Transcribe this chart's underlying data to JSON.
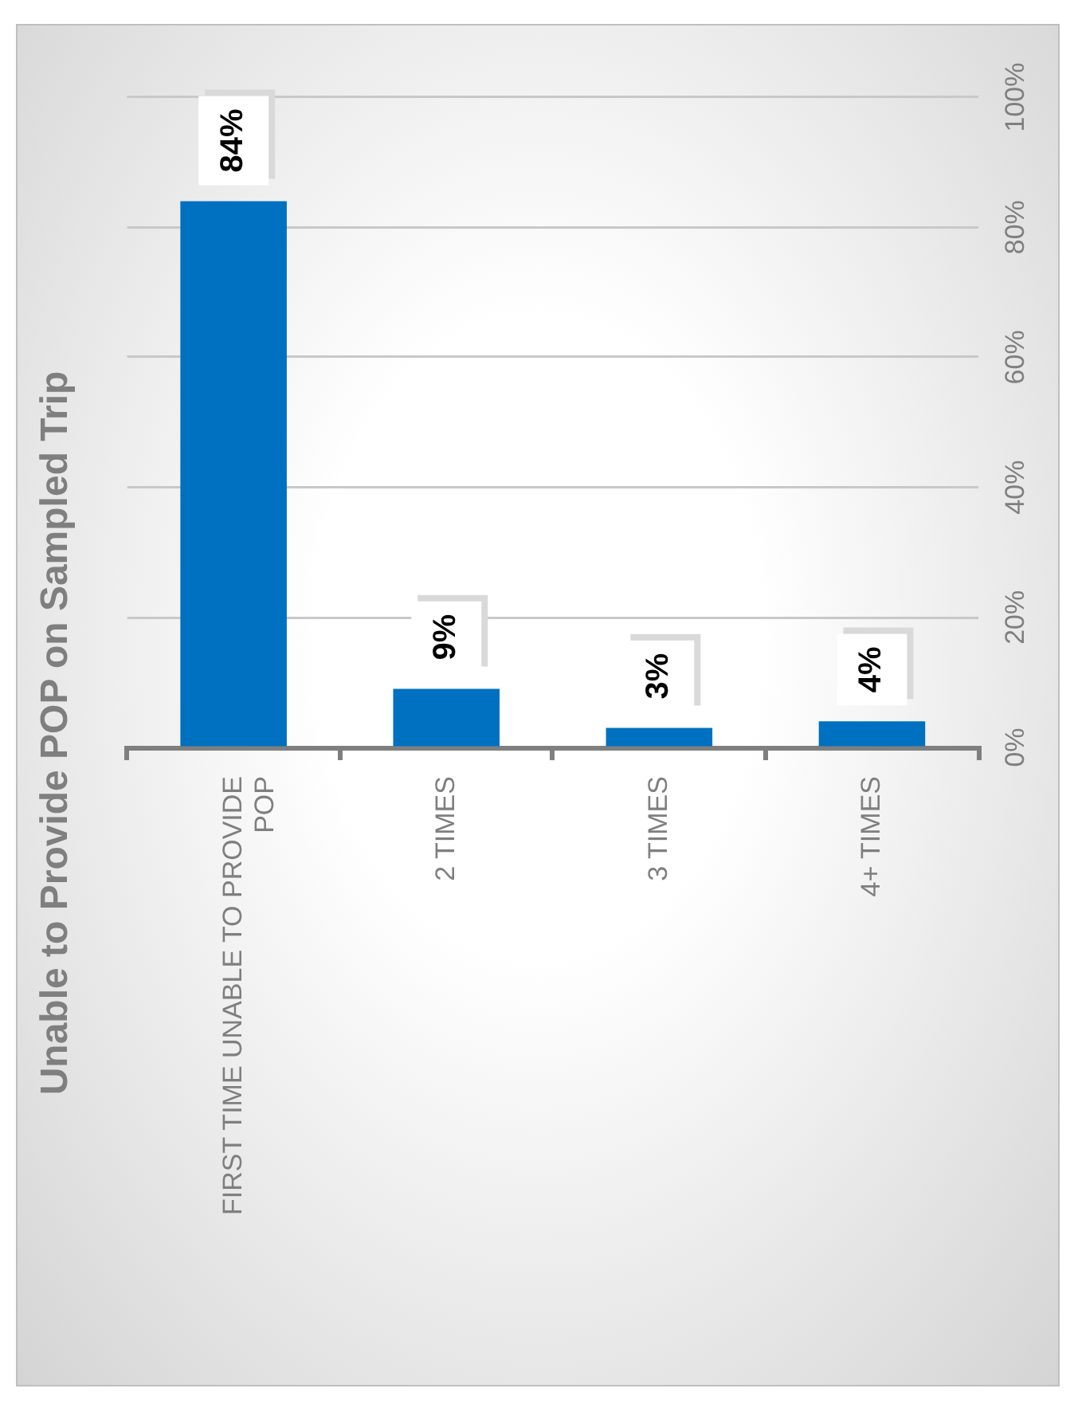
{
  "chart_data": {
    "type": "bar",
    "title": "Unable to Provide POP on Sampled Trip",
    "categories": [
      "FIRST TIME UNABLE TO PROVIDE POP",
      "2 TIMES",
      "3 TIMES",
      "4+ TIMES"
    ],
    "values": [
      84,
      9,
      3,
      4
    ],
    "color": "#0070c0",
    "ylim": [
      0,
      100
    ],
    "yticks": [
      {
        "value": 0,
        "label": "0%"
      },
      {
        "value": 20,
        "label": "20%"
      },
      {
        "value": 40,
        "label": "40%"
      },
      {
        "value": 60,
        "label": "60%"
      },
      {
        "value": 80,
        "label": "80%"
      },
      {
        "value": 100,
        "label": "100%"
      }
    ],
    "value_labels": [
      "84%",
      "9%",
      "3%",
      "4%"
    ],
    "grid": "y"
  }
}
